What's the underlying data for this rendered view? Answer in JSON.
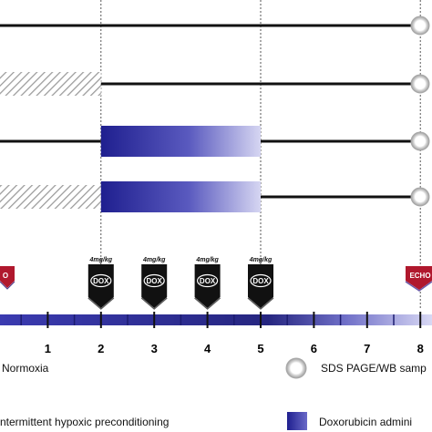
{
  "timeline": {
    "ticks": [
      "1",
      "2",
      "3",
      "4",
      "5",
      "6",
      "7",
      "8"
    ],
    "dashed_marks": [
      "2",
      "5",
      "8"
    ]
  },
  "doses": [
    {
      "dose_label": "4mg/kg",
      "drug_label": "DOX",
      "week": 2
    },
    {
      "dose_label": "4mg/kg",
      "drug_label": "DOX",
      "week": 3
    },
    {
      "dose_label": "4mg/kg",
      "drug_label": "DOX",
      "week": 4
    },
    {
      "dose_label": "4mg/kg",
      "drug_label": "DOX",
      "week": 5
    }
  ],
  "echo": {
    "left_label": "O",
    "right_label": "ECHO",
    "color": "#b0182d"
  },
  "groups": [
    {
      "hatched_to_week": null,
      "dox_from_week": null,
      "dox_to_week": null
    },
    {
      "hatched_to_week": 2,
      "dox_from_week": null,
      "dox_to_week": null
    },
    {
      "hatched_to_week": null,
      "dox_from_week": 2,
      "dox_to_week": 5
    },
    {
      "hatched_to_week": 2,
      "dox_from_week": 2,
      "dox_to_week": 5
    }
  ],
  "legend": {
    "normoxia": "Normoxia",
    "ihp": "ntermittent hypoxic preconditioning",
    "sampling": "SDS PAGE/WB samp",
    "doxorubicin": "Doxorubicin admini"
  },
  "colors": {
    "dox_blue": "#2a2a96",
    "dox_light": "#c8c8ee",
    "timeline_blue": "#2a2a8a",
    "echo_red": "#b0182d",
    "hatch": "#9a9a9a"
  }
}
